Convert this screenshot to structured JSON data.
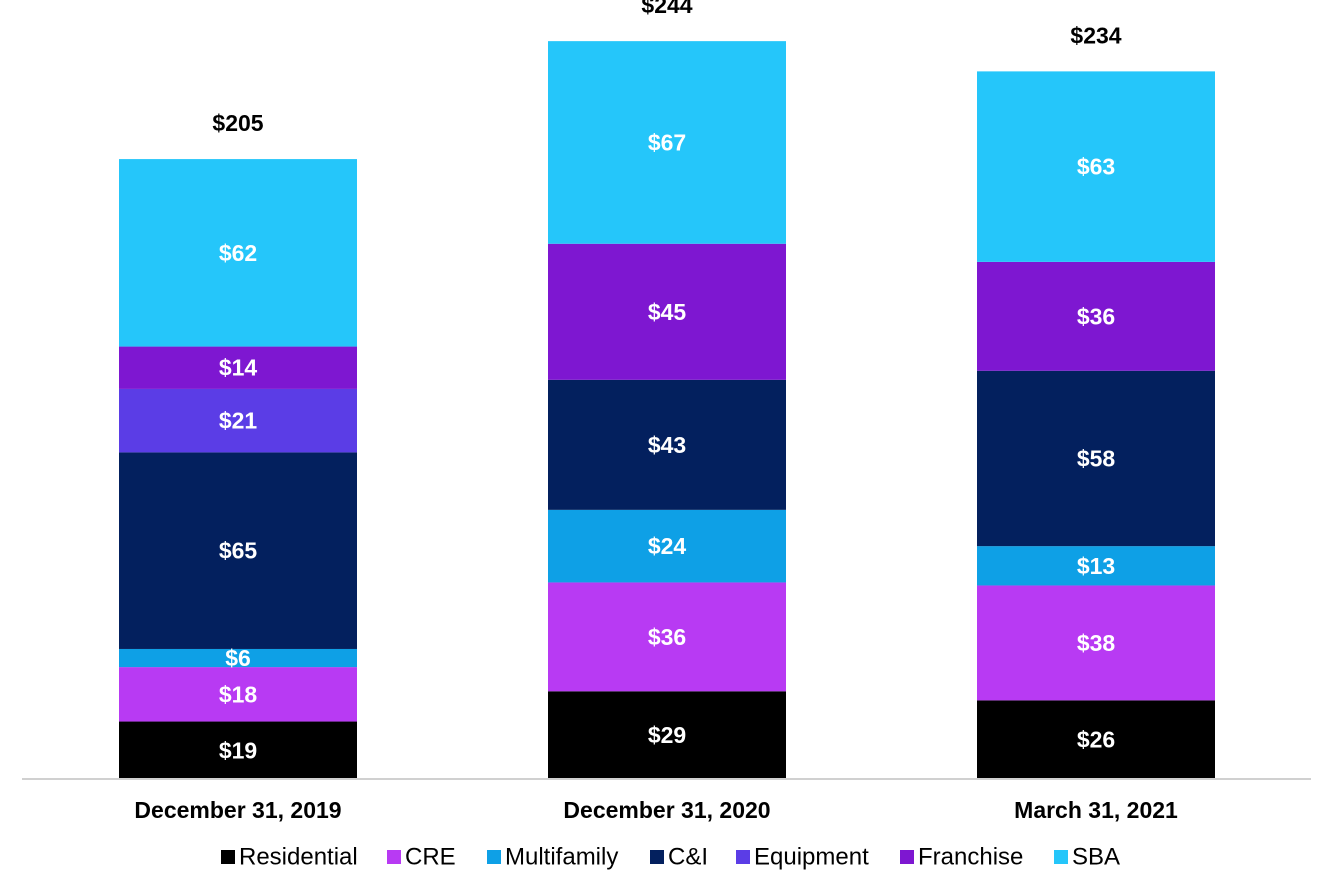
{
  "chart_data": {
    "type": "bar",
    "stacked": true,
    "categories": [
      "December 31, 2019",
      "December 31, 2020",
      "March 31, 2021"
    ],
    "totals": [
      205,
      244,
      234
    ],
    "total_labels": [
      "$205",
      "$244",
      "$234"
    ],
    "series": [
      {
        "name": "Residential",
        "color": "#000000",
        "values": [
          19,
          29,
          26
        ],
        "labels": [
          "$19",
          "$29",
          "$26"
        ]
      },
      {
        "name": "CRE",
        "color": "#B83AF3",
        "values": [
          18,
          36,
          38
        ],
        "labels": [
          "$18",
          "$36",
          "$38"
        ]
      },
      {
        "name": "Multifamily",
        "color": "#0EA0E6",
        "values": [
          6,
          24,
          13
        ],
        "labels": [
          "$6",
          "$24",
          "$13"
        ]
      },
      {
        "name": "C&I",
        "color": "#03205E",
        "values": [
          65,
          43,
          58
        ],
        "labels": [
          "$65",
          "$43",
          "$58"
        ]
      },
      {
        "name": "Equipment",
        "color": "#5B3DE6",
        "values": [
          21,
          0,
          0
        ],
        "labels": [
          "$21",
          "",
          ""
        ]
      },
      {
        "name": "Franchise",
        "color": "#7E17D1",
        "values": [
          14,
          45,
          36
        ],
        "labels": [
          "$14",
          "$45",
          "$36"
        ]
      },
      {
        "name": "SBA",
        "color": "#25C6FA",
        "values": [
          62,
          67,
          63
        ],
        "labels": [
          "$62",
          "$67",
          "$63"
        ]
      }
    ],
    "ylim": [
      0,
      244
    ],
    "legend_position": "bottom",
    "grid": false,
    "title": "",
    "xlabel": "",
    "ylabel": ""
  }
}
